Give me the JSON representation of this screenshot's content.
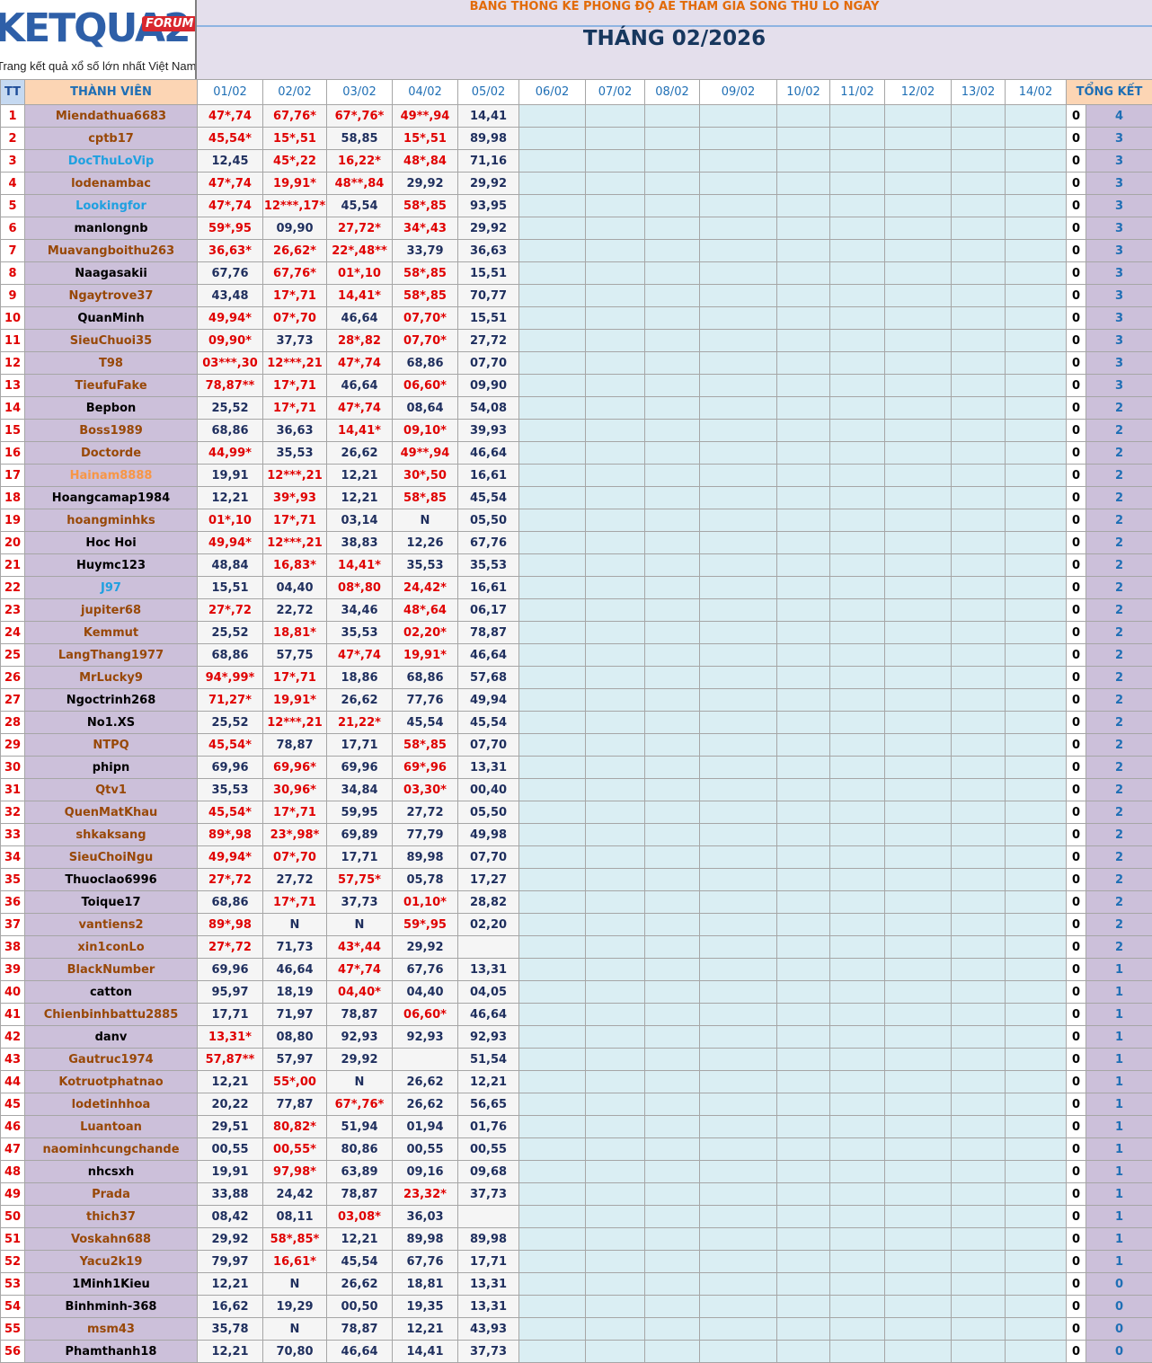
{
  "logo": {
    "name": "KETQUA2",
    "badge": "FORUM",
    "tagline": "Trang kết quả xổ số lớn nhất Việt Nam"
  },
  "header": {
    "title": "BẢNG THỐNG KÊ PHONG ĐỘ AE THAM GIA SONG THỦ LÔ NGÀY",
    "month": "THÁNG 02/2026"
  },
  "table": {
    "columns": {
      "tt": "TT",
      "member": "THÀNH VIÊN",
      "days": [
        "01/02",
        "02/02",
        "03/02",
        "04/02",
        "05/02",
        "06/02",
        "07/02",
        "08/02",
        "09/02",
        "10/02",
        "11/02",
        "12/02",
        "13/02",
        "14/02"
      ],
      "total": "TỔNG KẾT"
    },
    "rows": [
      {
        "tt": 1,
        "name": "Miendathua6683",
        "color": "#984807",
        "days": [
          "47*,74",
          "67,76*",
          "67*,76*",
          "49**,94",
          "14,41"
        ],
        "zero": 0,
        "total": 4
      },
      {
        "tt": 2,
        "name": "cptb17",
        "color": "#984807",
        "days": [
          "45,54*",
          "15*,51",
          "58,85",
          "15*,51",
          "89,98"
        ],
        "zero": 0,
        "total": 3
      },
      {
        "tt": 3,
        "name": "DocThuLoVip",
        "color": "#1fa0e0",
        "days": [
          "12,45",
          "45*,22",
          "16,22*",
          "48*,84",
          "71,16"
        ],
        "zero": 0,
        "total": 3
      },
      {
        "tt": 4,
        "name": "lodenambac",
        "color": "#984807",
        "days": [
          "47*,74",
          "19,91*",
          "48**,84",
          "29,92",
          "29,92"
        ],
        "zero": 0,
        "total": 3
      },
      {
        "tt": 5,
        "name": "Lookingfor",
        "color": "#1fa0e0",
        "days": [
          "47*,74",
          "12***,17*",
          "45,54",
          "58*,85",
          "93,95"
        ],
        "zero": 0,
        "total": 3
      },
      {
        "tt": 6,
        "name": "manlongnb",
        "color": "#000000",
        "days": [
          "59*,95",
          "09,90",
          "27,72*",
          "34*,43",
          "29,92"
        ],
        "zero": 0,
        "total": 3
      },
      {
        "tt": 7,
        "name": "Muavangboithu263",
        "color": "#984807",
        "days": [
          "36,63*",
          "26,62*",
          "22*,48**",
          "33,79",
          "36,63"
        ],
        "zero": 0,
        "total": 3
      },
      {
        "tt": 8,
        "name": "Naagasakii",
        "color": "#000000",
        "days": [
          "67,76",
          "67,76*",
          "01*,10",
          "58*,85",
          "15,51"
        ],
        "zero": 0,
        "total": 3
      },
      {
        "tt": 9,
        "name": "Ngaytrove37",
        "color": "#984807",
        "days": [
          "43,48",
          "17*,71",
          "14,41*",
          "58*,85",
          "70,77"
        ],
        "zero": 0,
        "total": 3
      },
      {
        "tt": 10,
        "name": "QuanMinh",
        "color": "#000000",
        "days": [
          "49,94*",
          "07*,70",
          "46,64",
          "07,70*",
          "15,51"
        ],
        "zero": 0,
        "total": 3
      },
      {
        "tt": 11,
        "name": "SieuChuoi35",
        "color": "#984807",
        "days": [
          "09,90*",
          "37,73",
          "28*,82",
          "07,70*",
          "27,72"
        ],
        "zero": 0,
        "total": 3
      },
      {
        "tt": 12,
        "name": "T98",
        "color": "#984807",
        "days": [
          "03***,30",
          "12***,21",
          "47*,74",
          "68,86",
          "07,70"
        ],
        "zero": 0,
        "total": 3
      },
      {
        "tt": 13,
        "name": "TieufuFake",
        "color": "#984807",
        "days": [
          "78,87**",
          "17*,71",
          "46,64",
          "06,60*",
          "09,90"
        ],
        "zero": 0,
        "total": 3
      },
      {
        "tt": 14,
        "name": "Bepbon",
        "color": "#000000",
        "days": [
          "25,52",
          "17*,71",
          "47*,74",
          "08,64",
          "54,08"
        ],
        "zero": 0,
        "total": 2
      },
      {
        "tt": 15,
        "name": "Boss1989",
        "color": "#984807",
        "days": [
          "68,86",
          "36,63",
          "14,41*",
          "09,10*",
          "39,93"
        ],
        "zero": 0,
        "total": 2
      },
      {
        "tt": 16,
        "name": "Doctorde",
        "color": "#984807",
        "days": [
          "44,99*",
          "35,53",
          "26,62",
          "49**,94",
          "46,64"
        ],
        "zero": 0,
        "total": 2
      },
      {
        "tt": 17,
        "name": "Hainam8888",
        "color": "#f79646",
        "days": [
          "19,91",
          "12***,21",
          "12,21",
          "30*,50",
          "16,61"
        ],
        "zero": 0,
        "total": 2
      },
      {
        "tt": 18,
        "name": "Hoangcamap1984",
        "color": "#000000",
        "days": [
          "12,21",
          "39*,93",
          "12,21",
          "58*,85",
          "45,54"
        ],
        "zero": 0,
        "total": 2
      },
      {
        "tt": 19,
        "name": "hoangminhks",
        "color": "#984807",
        "days": [
          "01*,10",
          "17*,71",
          "03,14",
          "N",
          "05,50"
        ],
        "zero": 0,
        "total": 2
      },
      {
        "tt": 20,
        "name": "Hoc Hoi",
        "color": "#000000",
        "days": [
          "49,94*",
          "12***,21",
          "38,83",
          "12,26",
          "67,76"
        ],
        "zero": 0,
        "total": 2
      },
      {
        "tt": 21,
        "name": "Huymc123",
        "color": "#000000",
        "days": [
          "48,84",
          "16,83*",
          "14,41*",
          "35,53",
          "35,53"
        ],
        "zero": 0,
        "total": 2
      },
      {
        "tt": 22,
        "name": "J97",
        "color": "#1fa0e0",
        "days": [
          "15,51",
          "04,40",
          "08*,80",
          "24,42*",
          "16,61"
        ],
        "zero": 0,
        "total": 2
      },
      {
        "tt": 23,
        "name": "jupiter68",
        "color": "#984807",
        "days": [
          "27*,72",
          "22,72",
          "34,46",
          "48*,64",
          "06,17"
        ],
        "zero": 0,
        "total": 2
      },
      {
        "tt": 24,
        "name": "Kemmut",
        "color": "#984807",
        "days": [
          "25,52",
          "18,81*",
          "35,53",
          "02,20*",
          "78,87"
        ],
        "zero": 0,
        "total": 2
      },
      {
        "tt": 25,
        "name": "LangThang1977",
        "color": "#984807",
        "days": [
          "68,86",
          "57,75",
          "47*,74",
          "19,91*",
          "46,64"
        ],
        "zero": 0,
        "total": 2
      },
      {
        "tt": 26,
        "name": "MrLucky9",
        "color": "#984807",
        "days": [
          "94*,99*",
          "17*,71",
          "18,86",
          "68,86",
          "57,68"
        ],
        "zero": 0,
        "total": 2
      },
      {
        "tt": 27,
        "name": "Ngoctrinh268",
        "color": "#000000",
        "days": [
          "71,27*",
          "19,91*",
          "26,62",
          "77,76",
          "49,94"
        ],
        "zero": 0,
        "total": 2
      },
      {
        "tt": 28,
        "name": "No1.XS",
        "color": "#000000",
        "days": [
          "25,52",
          "12***,21",
          "21,22*",
          "45,54",
          "45,54"
        ],
        "zero": 0,
        "total": 2
      },
      {
        "tt": 29,
        "name": "NTPQ",
        "color": "#984807",
        "days": [
          "45,54*",
          "78,87",
          "17,71",
          "58*,85",
          "07,70"
        ],
        "zero": 0,
        "total": 2
      },
      {
        "tt": 30,
        "name": "phipn",
        "color": "#000000",
        "days": [
          "69,96",
          "69,96*",
          "69,96",
          "69*,96",
          "13,31"
        ],
        "zero": 0,
        "total": 2
      },
      {
        "tt": 31,
        "name": "Qtv1",
        "color": "#984807",
        "days": [
          "35,53",
          "30,96*",
          "34,84",
          "03,30*",
          "00,40"
        ],
        "zero": 0,
        "total": 2
      },
      {
        "tt": 32,
        "name": "QuenMatKhau",
        "color": "#984807",
        "days": [
          "45,54*",
          "17*,71",
          "59,95",
          "27,72",
          "05,50"
        ],
        "zero": 0,
        "total": 2
      },
      {
        "tt": 33,
        "name": "shkaksang",
        "color": "#984807",
        "days": [
          "89*,98",
          "23*,98*",
          "69,89",
          "77,79",
          "49,98"
        ],
        "zero": 0,
        "total": 2
      },
      {
        "tt": 34,
        "name": "SieuChoiNgu",
        "color": "#984807",
        "days": [
          "49,94*",
          "07*,70",
          "17,71",
          "89,98",
          "07,70"
        ],
        "zero": 0,
        "total": 2
      },
      {
        "tt": 35,
        "name": "Thuoclao6996",
        "color": "#000000",
        "days": [
          "27*,72",
          "27,72",
          "57,75*",
          "05,78",
          "17,27"
        ],
        "zero": 0,
        "total": 2
      },
      {
        "tt": 36,
        "name": "Toique17",
        "color": "#000000",
        "days": [
          "68,86",
          "17*,71",
          "37,73",
          "01,10*",
          "28,82"
        ],
        "zero": 0,
        "total": 2
      },
      {
        "tt": 37,
        "name": "vantiens2",
        "color": "#984807",
        "days": [
          "89*,98",
          "N",
          "N",
          "59*,95",
          "02,20"
        ],
        "zero": 0,
        "total": 2
      },
      {
        "tt": 38,
        "name": "xin1conLo",
        "color": "#984807",
        "days": [
          "27*,72",
          "71,73",
          "43*,44",
          "29,92",
          null
        ],
        "zero": 0,
        "total": 2
      },
      {
        "tt": 39,
        "name": "BlackNumber",
        "color": "#984807",
        "days": [
          "69,96",
          "46,64",
          "47*,74",
          "67,76",
          "13,31"
        ],
        "zero": 0,
        "total": 1
      },
      {
        "tt": 40,
        "name": "catton",
        "color": "#000000",
        "days": [
          "95,97",
          "18,19",
          "04,40*",
          "04,40",
          "04,05"
        ],
        "zero": 0,
        "total": 1
      },
      {
        "tt": 41,
        "name": "Chienbinhbattu2885",
        "color": "#984807",
        "days": [
          "17,71",
          "71,97",
          "78,87",
          "06,60*",
          "46,64"
        ],
        "zero": 0,
        "total": 1
      },
      {
        "tt": 42,
        "name": "danv",
        "color": "#000000",
        "days": [
          "13,31*",
          "08,80",
          "92,93",
          "92,93",
          "92,93"
        ],
        "zero": 0,
        "total": 1
      },
      {
        "tt": 43,
        "name": "Gautruc1974",
        "color": "#984807",
        "days": [
          "57,87**",
          "57,97",
          "29,92",
          null,
          "51,54"
        ],
        "zero": 0,
        "total": 1
      },
      {
        "tt": 44,
        "name": "Kotruotphatnao",
        "color": "#984807",
        "days": [
          "12,21",
          "55*,00",
          "N",
          "26,62",
          "12,21"
        ],
        "zero": 0,
        "total": 1
      },
      {
        "tt": 45,
        "name": "lodetinhhoa",
        "color": "#984807",
        "days": [
          "20,22",
          "77,87",
          "67*,76*",
          "26,62",
          "56,65"
        ],
        "zero": 0,
        "total": 1
      },
      {
        "tt": 46,
        "name": "Luantoan",
        "color": "#984807",
        "days": [
          "29,51",
          "80,82*",
          "51,94",
          "01,94",
          "01,76"
        ],
        "zero": 0,
        "total": 1
      },
      {
        "tt": 47,
        "name": "naominhcungchande",
        "color": "#984807",
        "days": [
          "00,55",
          "00,55*",
          "80,86",
          "00,55",
          "00,55"
        ],
        "zero": 0,
        "total": 1
      },
      {
        "tt": 48,
        "name": "nhcsxh",
        "color": "#000000",
        "days": [
          "19,91",
          "97,98*",
          "63,89",
          "09,16",
          "09,68"
        ],
        "zero": 0,
        "total": 1
      },
      {
        "tt": 49,
        "name": "Prada",
        "color": "#984807",
        "days": [
          "33,88",
          "24,42",
          "78,87",
          "23,32*",
          "37,73"
        ],
        "zero": 0,
        "total": 1
      },
      {
        "tt": 50,
        "name": "thich37",
        "color": "#984807",
        "days": [
          "08,42",
          "08,11",
          "03,08*",
          "36,03",
          null
        ],
        "zero": 0,
        "total": 1
      },
      {
        "tt": 51,
        "name": "Voskahn688",
        "color": "#984807",
        "days": [
          "29,92",
          "58*,85*",
          "12,21",
          "89,98",
          "89,98"
        ],
        "zero": 0,
        "total": 1
      },
      {
        "tt": 52,
        "name": "Yacu2k19",
        "color": "#984807",
        "days": [
          "79,97",
          "16,61*",
          "45,54",
          "67,76",
          "17,71"
        ],
        "zero": 0,
        "total": 1
      },
      {
        "tt": 53,
        "name": "1Minh1Kieu",
        "color": "#000000",
        "days": [
          "12,21",
          "N",
          "26,62",
          "18,81",
          "13,31"
        ],
        "zero": 0,
        "total": 0
      },
      {
        "tt": 54,
        "name": "Binhminh-368",
        "color": "#000000",
        "days": [
          "16,62",
          "19,29",
          "00,50",
          "19,35",
          "13,31"
        ],
        "zero": 0,
        "total": 0
      },
      {
        "tt": 55,
        "name": "msm43",
        "color": "#984807",
        "days": [
          "35,78",
          "N",
          "78,87",
          "12,21",
          "43,93"
        ],
        "zero": 0,
        "total": 0
      },
      {
        "tt": 56,
        "name": "Phamthanh18",
        "color": "#000000",
        "days": [
          "12,21",
          "70,80",
          "46,64",
          "14,41",
          "37,73"
        ],
        "zero": 0,
        "total": 0
      }
    ]
  }
}
